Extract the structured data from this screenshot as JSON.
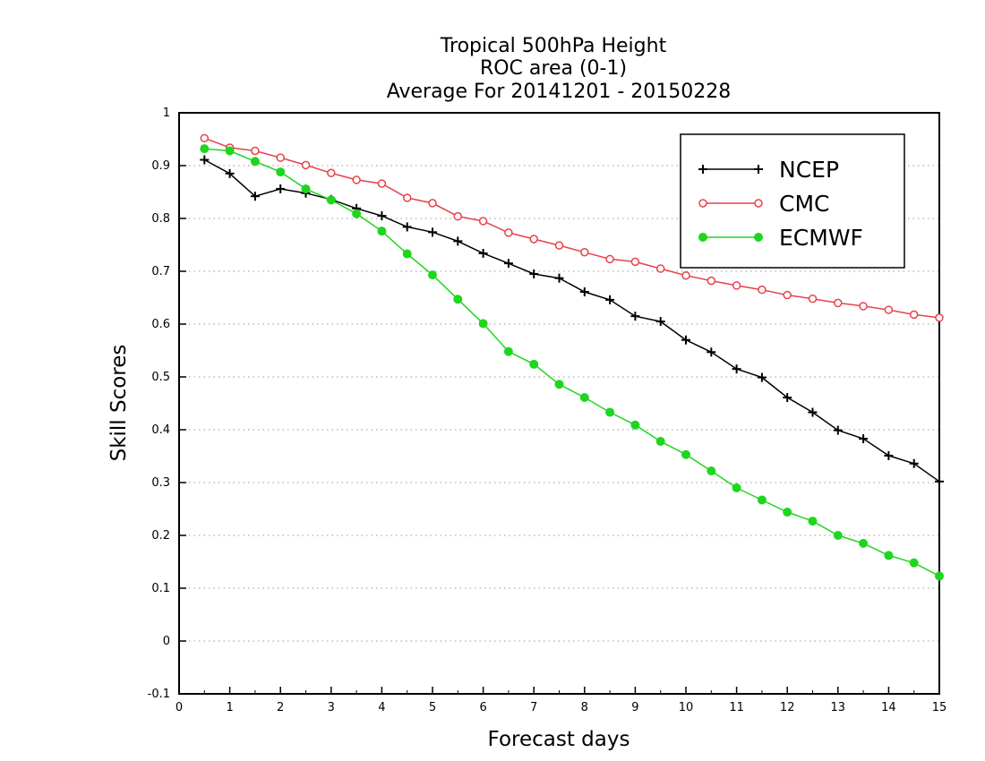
{
  "chart_data": {
    "type": "line",
    "title_lines": [
      "Tropical 500hPa Height",
      "ROC area (0-1)",
      "Average For 20141201 - 20150228"
    ],
    "xlabel": "Forecast days",
    "ylabel": "Skill Scores",
    "xlim": [
      0,
      15
    ],
    "ylim": [
      -0.1,
      1
    ],
    "xticks": [
      0,
      1,
      2,
      3,
      4,
      5,
      6,
      7,
      8,
      9,
      10,
      11,
      12,
      13,
      14,
      15
    ],
    "yticks": [
      -0.1,
      0,
      0.1,
      0.2,
      0.3,
      0.4,
      0.5,
      0.6,
      0.7,
      0.8,
      0.9,
      1
    ],
    "ytick_labels": [
      "-0.1",
      "0",
      "0.1",
      "0.2",
      "0.3",
      "0.4",
      "0.5",
      "0.6",
      "0.7",
      "0.8",
      "0.9",
      "1"
    ],
    "grid": "horizontal dotted",
    "legend_position": "top-right",
    "x": [
      0.5,
      1,
      1.5,
      2,
      2.5,
      3,
      3.5,
      4,
      4.5,
      5,
      5.5,
      6,
      6.5,
      7,
      7.5,
      8,
      8.5,
      9,
      9.5,
      10,
      10.5,
      11,
      11.5,
      12,
      12.5,
      13,
      13.5,
      14,
      14.5,
      15
    ],
    "series": [
      {
        "name": "NCEP",
        "color": "#000000",
        "marker": "plus",
        "values": [
          0.911,
          0.885,
          0.842,
          0.856,
          0.848,
          0.836,
          0.819,
          0.805,
          0.784,
          0.774,
          0.757,
          0.734,
          0.715,
          0.695,
          0.687,
          0.661,
          0.646,
          0.615,
          0.605,
          0.57,
          0.547,
          0.515,
          0.499,
          0.461,
          0.433,
          0.399,
          0.383,
          0.351,
          0.336,
          0.302
        ]
      },
      {
        "name": "CMC",
        "color": "#e8414a",
        "marker": "open-circle",
        "values": [
          0.952,
          0.934,
          0.928,
          0.915,
          0.901,
          0.886,
          0.873,
          0.866,
          0.839,
          0.829,
          0.804,
          0.795,
          0.773,
          0.761,
          0.749,
          0.736,
          0.723,
          0.718,
          0.705,
          0.692,
          0.682,
          0.673,
          0.665,
          0.655,
          0.648,
          0.64,
          0.634,
          0.627,
          0.618,
          0.612
        ]
      },
      {
        "name": "ECMWF",
        "color": "#1ed61e",
        "marker": "filled-circle",
        "values": [
          0.932,
          0.928,
          0.908,
          0.888,
          0.856,
          0.835,
          0.809,
          0.776,
          0.733,
          0.693,
          0.647,
          0.601,
          0.548,
          0.524,
          0.486,
          0.461,
          0.433,
          0.409,
          0.378,
          0.353,
          0.322,
          0.29,
          0.267,
          0.244,
          0.227,
          0.2,
          0.185,
          0.162,
          0.148,
          0.123
        ]
      }
    ]
  }
}
